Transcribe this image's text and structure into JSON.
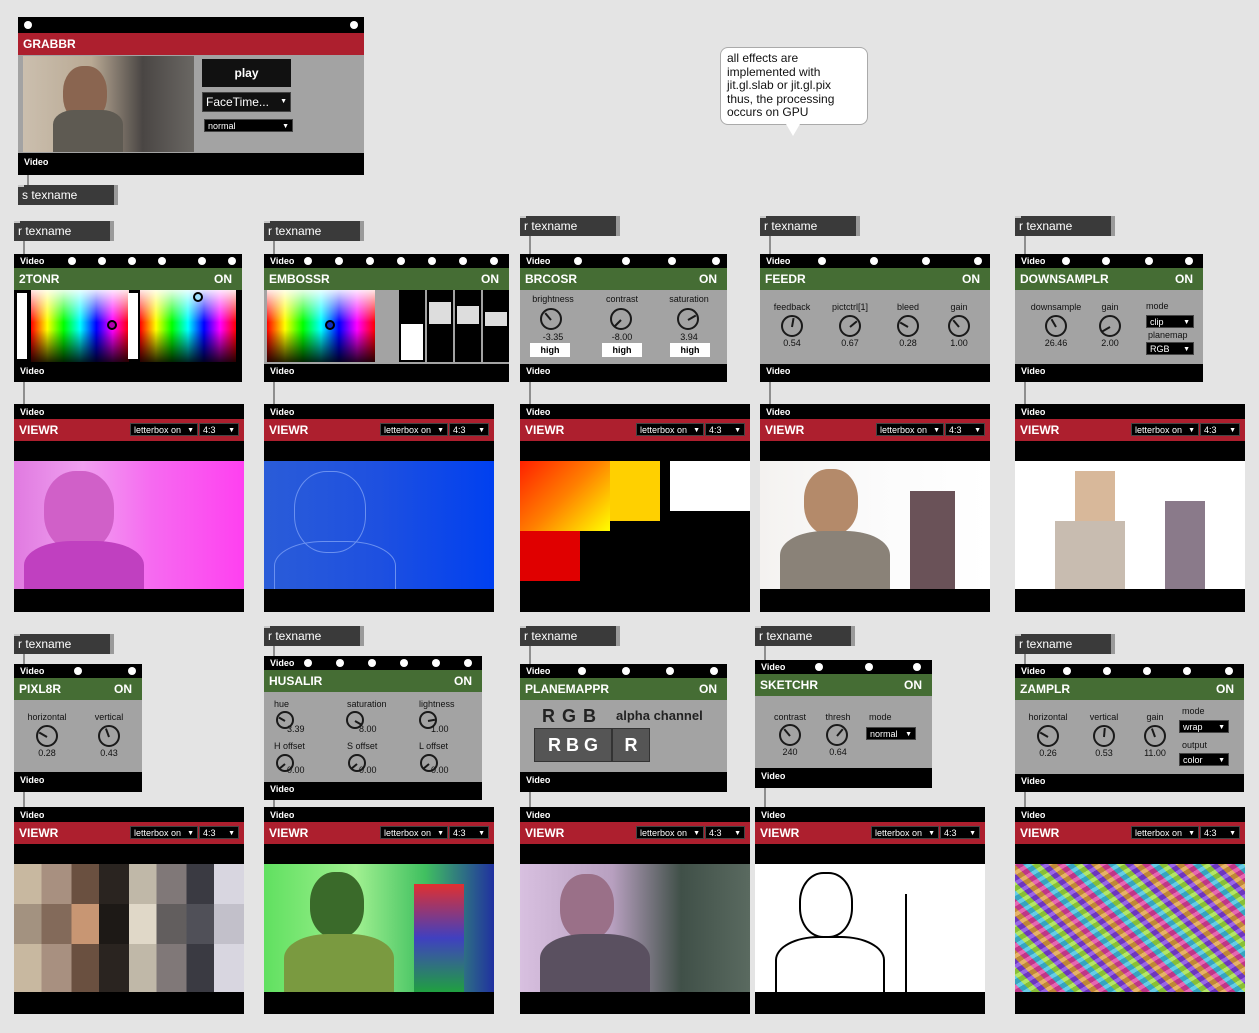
{
  "comment": {
    "lines": [
      "all effects are",
      "implemented with",
      "jit.gl.slab or jit.gl.pix",
      "thus, the processing",
      "occurs on GPU"
    ]
  },
  "grabbr": {
    "title": "GRABBR",
    "play_label": "play",
    "device": "FaceTime...",
    "mode": "normal",
    "out_label": "Video"
  },
  "send_msg": "s texname",
  "recv_msg": "r texname",
  "video_label": "Video",
  "on_label": "ON",
  "viewr": {
    "title": "VIEWR",
    "letterbox": "letterbox on",
    "aspect": "4:3"
  },
  "effects": {
    "tonr": {
      "title": "2TONR"
    },
    "embossr": {
      "title": "EMBOSSR"
    },
    "brcosr": {
      "title": "BRCOSR",
      "params": [
        {
          "label": "brightness",
          "value": "-3.35",
          "button": "high"
        },
        {
          "label": "contrast",
          "value": "-8.00",
          "button": "high"
        },
        {
          "label": "saturation",
          "value": "3.94",
          "button": "high"
        }
      ]
    },
    "feedr": {
      "title": "FEEDR",
      "params": [
        {
          "label": "feedback",
          "value": "0.54"
        },
        {
          "label": "pictctrl[1]",
          "value": "0.67"
        },
        {
          "label": "bleed",
          "value": "0.28"
        },
        {
          "label": "gain",
          "value": "1.00"
        }
      ]
    },
    "downsamplr": {
      "title": "DOWNSAMPLR",
      "params": [
        {
          "label": "downsample",
          "value": "26.46"
        },
        {
          "label": "gain",
          "value": "2.00"
        }
      ],
      "mode_label": "mode",
      "mode_value": "clip",
      "planemap_label": "planemap",
      "planemap_value": "RGB"
    },
    "pixl8r": {
      "title": "PIXL8R",
      "params": [
        {
          "label": "horizontal",
          "value": "0.28"
        },
        {
          "label": "vertical",
          "value": "0.43"
        }
      ]
    },
    "husalir": {
      "title": "HUSALIR",
      "params": [
        {
          "label": "hue",
          "value": "3.39"
        },
        {
          "label": "saturation",
          "value": "8.00"
        },
        {
          "label": "lightness",
          "value": "1.00"
        },
        {
          "label": "H offset",
          "value": "0.00"
        },
        {
          "label": "S offset",
          "value": "0.00"
        },
        {
          "label": "L offset",
          "value": "0.00"
        }
      ]
    },
    "planemappr": {
      "title": "PLANEMAPPR",
      "source": "R G B",
      "alpha_label": "alpha channel",
      "map": "R B G",
      "alpha": "R"
    },
    "sketchr": {
      "title": "SKETCHR",
      "params": [
        {
          "label": "contrast",
          "value": "240"
        },
        {
          "label": "thresh",
          "value": "0.64"
        }
      ],
      "mode_label": "mode",
      "mode_value": "normal"
    },
    "zamplr": {
      "title": "ZAMPLR",
      "params": [
        {
          "label": "horizontal",
          "value": "0.26"
        },
        {
          "label": "vertical",
          "value": "0.53"
        },
        {
          "label": "gain",
          "value": "11.00"
        }
      ],
      "mode_label": "mode",
      "mode_value": "wrap",
      "output_label": "output",
      "output_value": "color"
    }
  },
  "colors": {
    "canvas": "#e4e4e4",
    "green": "#456d34",
    "red": "#ad1f2e",
    "panel": "#a3a3a3"
  }
}
